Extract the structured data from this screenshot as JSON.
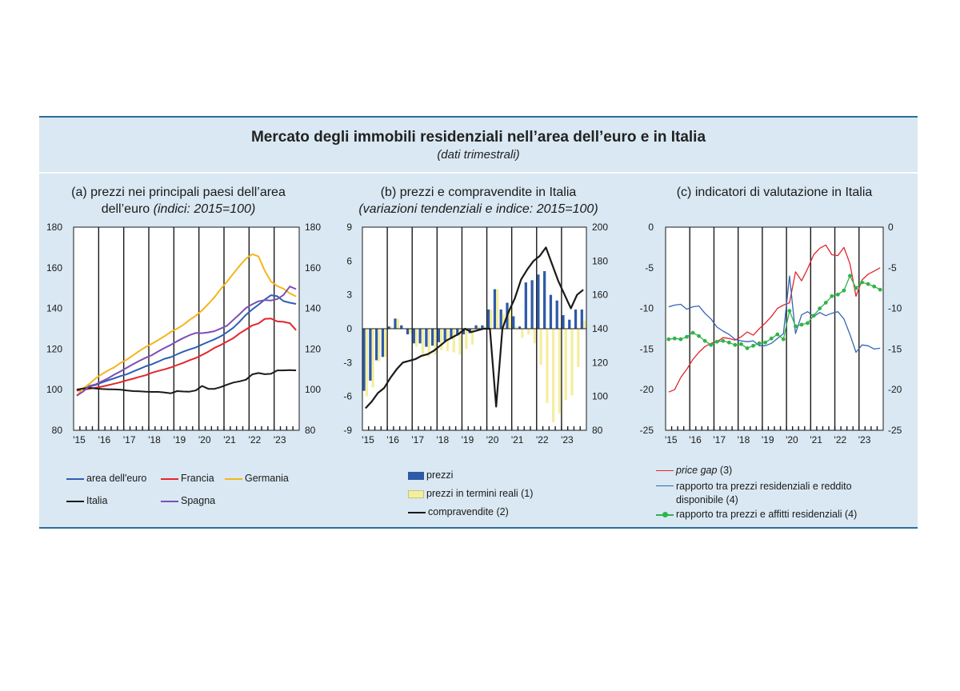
{
  "figure": {
    "title": "Mercato degli immobili residenziali nell’area dell’euro e in Italia",
    "subtitle": "(dati trimestrali)"
  },
  "chart_data": [
    {
      "type": "line",
      "panel": "a",
      "title_line1": "(a) prezzi nei principali paesi dell’area",
      "title_line2_plain": "dell’euro ",
      "title_line2_italic": "(indici: 2015=100)",
      "x_tick_labels": [
        "'15",
        "'16",
        "'17",
        "'18",
        "'19",
        "'20",
        "'21",
        "'22",
        "'23"
      ],
      "x_start_year": 2015,
      "quarters": 36,
      "ylim": [
        80,
        180
      ],
      "yticks": [
        "80",
        "100",
        "120",
        "140",
        "160",
        "180"
      ],
      "y2ticks": [
        "80",
        "100",
        "120",
        "140",
        "160",
        "180"
      ],
      "series": [
        {
          "name": "area dell'euro",
          "color": "#2e5fb4",
          "values": [
            100,
            100.5,
            101.5,
            102.3,
            103.5,
            104.6,
            105.6,
            106.7,
            107.6,
            108.9,
            110.2,
            111.5,
            112.5,
            113.8,
            115.2,
            116.0,
            117.4,
            118.7,
            119.8,
            120.8,
            122.2,
            123.5,
            124.8,
            126.3,
            128.3,
            130.5,
            133.5,
            136.8,
            139.5,
            141.8,
            144.3,
            146.5,
            146.0,
            143.6,
            142.8,
            142.2
          ]
        },
        {
          "name": "Francia",
          "color": "#e3262d",
          "values": [
            99.5,
            100,
            100.4,
            100.9,
            101.5,
            102.2,
            102.9,
            103.7,
            104.6,
            105.4,
            106.3,
            107.1,
            108.3,
            109.2,
            110.0,
            110.9,
            112.1,
            113.2,
            114.5,
            115.6,
            117.1,
            118.7,
            120.6,
            122.0,
            123.7,
            125.4,
            127.7,
            129.6,
            131.6,
            132.6,
            134.8,
            135.0,
            133.6,
            133.4,
            132.7,
            129.3
          ]
        },
        {
          "name": "Germania",
          "color": "#f4b51c",
          "values": [
            97,
            100.5,
            102.8,
            105.5,
            107.6,
            109.5,
            111.0,
            113.2,
            114.8,
            116.9,
            119.1,
            121.0,
            122.6,
            124.4,
            126.3,
            128.4,
            130.0,
            131.9,
            134.3,
            136.4,
            139.0,
            142.2,
            145.6,
            149.6,
            153.2,
            157.2,
            161.0,
            164.5,
            166.7,
            165.6,
            158.6,
            153.2,
            151.0,
            149.7,
            147.4,
            145.9
          ]
        },
        {
          "name": "Italia",
          "color": "#1a1a1a",
          "values": [
            100,
            100.6,
            100.9,
            100.6,
            100.3,
            100.2,
            100.1,
            100,
            99.6,
            99.3,
            99.2,
            99,
            98.9,
            98.9,
            98.6,
            98.2,
            99.3,
            99.1,
            99,
            99.6,
            101.8,
            100.4,
            100.4,
            101.3,
            102.5,
            103.5,
            104.1,
            104.9,
            107.5,
            108.2,
            107.6,
            107.8,
            109.5,
            109.5,
            109.6,
            109.5
          ]
        },
        {
          "name": "Spagna",
          "color": "#7b4fb3",
          "values": [
            97,
            99,
            101.8,
            102.6,
            104.1,
            105.6,
            107.4,
            109.0,
            110.8,
            112.5,
            114.2,
            115.7,
            117.0,
            118.8,
            120.5,
            122.0,
            123.8,
            125.4,
            126.8,
            127.9,
            127.8,
            128.2,
            128.8,
            130.1,
            131.5,
            134.4,
            137.2,
            140.2,
            142.0,
            143.5,
            144.1,
            143.9,
            144.6,
            146.6,
            150.8,
            149.5
          ]
        }
      ],
      "legend": [
        "area dell'euro",
        "Francia",
        "Germania",
        "Italia",
        "Spagna"
      ]
    },
    {
      "type": "bar+line",
      "panel": "b",
      "title_line1": "(b) prezzi e compravendite in Italia",
      "title_line2_italic": "(variazioni tendenziali e indice: 2015=100)",
      "x_tick_labels": [
        "'15",
        "'16",
        "'17",
        "'18",
        "'19",
        "'20",
        "'21",
        "'22",
        "'23"
      ],
      "x_start_year": 2015,
      "quarters": 36,
      "ylim": [
        -9,
        9
      ],
      "y2lim": [
        80,
        200
      ],
      "yticks": [
        "-9",
        "-6",
        "-3",
        "0",
        "3",
        "6",
        "9"
      ],
      "y2ticks": [
        "80",
        "100",
        "120",
        "140",
        "160",
        "180",
        "200"
      ],
      "series": [
        {
          "name": "prezzi",
          "kind": "bar",
          "color": "#2e5aa8",
          "values": [
            -5.5,
            -4.6,
            -2.8,
            -2.5,
            0.2,
            0.9,
            0.3,
            -0.5,
            -1.3,
            -1.3,
            -1.6,
            -1.5,
            -1.2,
            -1.1,
            -0.9,
            -0.6,
            -0.5,
            -0.4,
            0.3,
            0.3,
            1.7,
            3.5,
            1.7,
            2.3,
            1.1,
            0.2,
            4.1,
            4.3,
            4.8,
            5.1,
            3.0,
            2.5,
            1.2,
            0.8,
            1.7,
            1.7
          ]
        },
        {
          "name": "prezzi in termini reali (1)",
          "kind": "bar",
          "color": "#f4eea0",
          "values": [
            -6,
            -5.2,
            -2.9,
            -2.5,
            0.2,
            0.9,
            0,
            -0.4,
            -1.6,
            -2.3,
            -2.5,
            -2.3,
            -1.9,
            -2,
            -2.1,
            -2.3,
            -1.8,
            -1.4,
            0.2,
            0.2,
            1.7,
            3.5,
            1.3,
            1.8,
            0.2,
            -0.8,
            -0.5,
            -1.3,
            -3.2,
            -6.6,
            -8.3,
            -7.5,
            -6.3,
            -5.9,
            -3.4,
            0.7
          ]
        },
        {
          "name": "compravendite (2)",
          "kind": "line",
          "color": "#1a1a1a",
          "axis": "right",
          "values": [
            93,
            97,
            102,
            105,
            111,
            116,
            120,
            121,
            122,
            124,
            125,
            127,
            130,
            133,
            135,
            137,
            140,
            138,
            139,
            140,
            140,
            94,
            140,
            150,
            158,
            169,
            175,
            180,
            183,
            188,
            178,
            168,
            160,
            152,
            160,
            163
          ]
        }
      ],
      "legend": [
        "prezzi",
        "prezzi in termini reali (1)",
        "compravendite (2)"
      ]
    },
    {
      "type": "line",
      "panel": "c",
      "title_line1": "(c) indicatori di valutazione in Italia",
      "x_tick_labels": [
        "'15",
        "'16",
        "'17",
        "'18",
        "'19",
        "'20",
        "'21",
        "'22",
        "'23"
      ],
      "x_start_year": 2015,
      "quarters": 36,
      "ylim": [
        -25,
        0
      ],
      "yticks": [
        "-25",
        "-20",
        "-15",
        "-10",
        "-5",
        "0"
      ],
      "y2ticks": [
        "-25",
        "-20",
        "-15",
        "-10",
        "-5",
        "0"
      ],
      "series": [
        {
          "name": "price gap",
          "color": "#e3262d",
          "values": [
            -20.3,
            -20.0,
            -18.5,
            -17.5,
            -16.3,
            -15.4,
            -14.7,
            -14.3,
            -14.1,
            -13.6,
            -13.7,
            -13.9,
            -13.5,
            -12.9,
            -13.3,
            -12.5,
            -11.8,
            -11.0,
            -10.0,
            -9.6,
            -9.3,
            -5.5,
            -6.6,
            -5.1,
            -3.4,
            -2.6,
            -2.2,
            -3.4,
            -3.5,
            -2.5,
            -4.5,
            -8.5,
            -6.5,
            -5.8,
            -5.4,
            -5.0
          ]
        },
        {
          "name": "rapporto tra prezzi residenziali e reddito disponibile",
          "color": "#3466b6",
          "values": [
            -9.8,
            -9.6,
            -9.5,
            -10.1,
            -9.8,
            -9.7,
            -10.6,
            -11.3,
            -12.3,
            -12.8,
            -13.2,
            -13.8,
            -14.0,
            -14.1,
            -14.0,
            -14.6,
            -14.6,
            -14.3,
            -13.7,
            -13.1,
            -6.0,
            -13.1,
            -10.8,
            -10.4,
            -11.0,
            -10.5,
            -10.9,
            -10.6,
            -10.4,
            -11.3,
            -13.2,
            -15.4,
            -14.5,
            -14.6,
            -15.0,
            -14.9
          ]
        },
        {
          "name": "rapporto tra prezzi e affitti residenziali",
          "color": "#30b34a",
          "markers": true,
          "values": [
            -13.8,
            -13.7,
            -13.8,
            -13.5,
            -13.0,
            -13.4,
            -14.0,
            -14.5,
            -14.1,
            -14.0,
            -14.2,
            -14.5,
            -14.4,
            -14.9,
            -14.6,
            -14.3,
            -14.2,
            -13.7,
            -13.2,
            -13.8,
            -10.3,
            -12.2,
            -12.0,
            -11.8,
            -10.9,
            -10.0,
            -9.3,
            -8.5,
            -8.3,
            -7.8,
            -6.0,
            -7.5,
            -6.8,
            -7.0,
            -7.3,
            -7.7
          ]
        }
      ],
      "legend": [
        {
          "italic": "price gap",
          "plain": " (3)"
        },
        {
          "plain": "rapporto tra prezzi residenziali e reddito",
          "plain2": "disponibile (4)"
        },
        {
          "plain": "rapporto tra prezzi e affitti residenziali (4)"
        }
      ]
    }
  ]
}
